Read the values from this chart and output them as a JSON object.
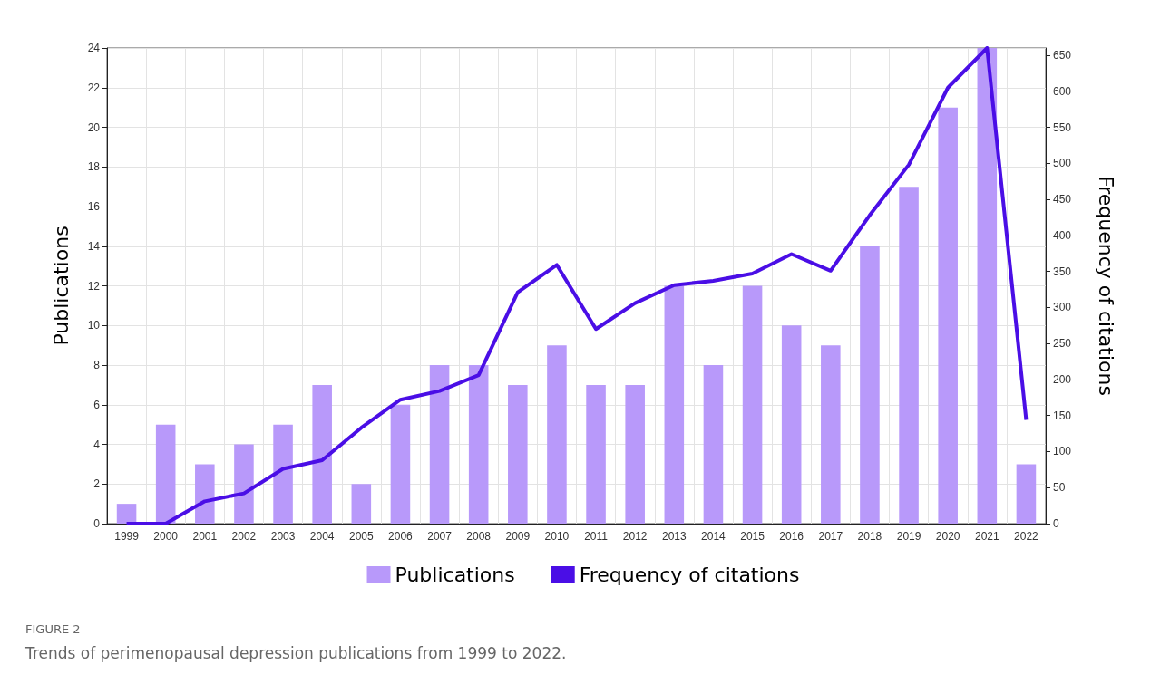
{
  "chart_data": {
    "type": "bar",
    "categories": [
      "1999",
      "2000",
      "2001",
      "2002",
      "2003",
      "2004",
      "2005",
      "2006",
      "2007",
      "2008",
      "2009",
      "2010",
      "2011",
      "2012",
      "2013",
      "2014",
      "2015",
      "2016",
      "2017",
      "2018",
      "2019",
      "2020",
      "2021",
      "2022"
    ],
    "series": [
      {
        "name": "Publications",
        "color": "#b899fa",
        "values": [
          1,
          5,
          3,
          4,
          5,
          7,
          2,
          6,
          8,
          8,
          7,
          9,
          7,
          7,
          12,
          8,
          12,
          10,
          9,
          14,
          17,
          21,
          24,
          3
        ]
      },
      {
        "name": "Frequency of citations",
        "type": "line",
        "axis": "y2",
        "color": "#4a0ee6",
        "values": [
          0,
          0,
          31,
          42,
          76,
          88,
          133,
          172,
          184,
          206,
          321,
          359,
          270,
          306,
          331,
          337,
          347,
          374,
          351,
          428,
          498,
          605,
          660,
          144
        ]
      }
    ],
    "ylabel": "Publications",
    "y2label": "Frequency of citations",
    "ylim": [
      0,
      24
    ],
    "yticks": [
      0,
      2,
      4,
      6,
      8,
      10,
      12,
      14,
      16,
      18,
      20,
      22,
      24
    ],
    "y2lim": [
      0,
      660
    ],
    "y2ticks": [
      0,
      50,
      100,
      150,
      200,
      250,
      300,
      350,
      400,
      450,
      500,
      550,
      600,
      650
    ],
    "grid": true,
    "legend": "bottom",
    "marker": "none",
    "annotations": [
      "FIGURE 2",
      "Trends of perimenopausal depression publications from 1999 to 2022."
    ]
  }
}
